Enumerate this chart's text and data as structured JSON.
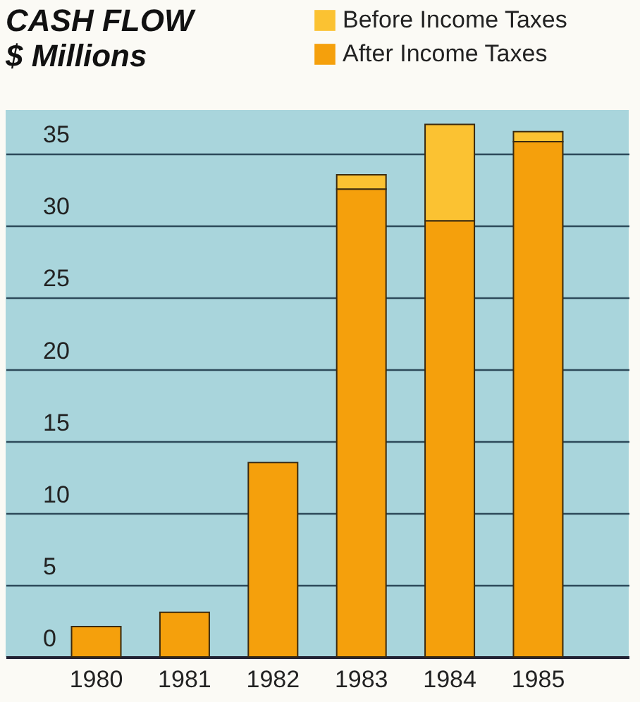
{
  "chart_data": {
    "type": "bar",
    "title": "CASH FLOW",
    "subtitle": "$ Millions",
    "categories": [
      "1980",
      "1981",
      "1982",
      "1983",
      "1984",
      "1985"
    ],
    "series": [
      {
        "name": "After Income Taxes",
        "color": "#f5a00c",
        "values": [
          2.1,
          3.1,
          13.5,
          32.5,
          30.3,
          35.8
        ]
      },
      {
        "name": "Before Income Taxes",
        "color": "#fbc232",
        "values": [
          null,
          null,
          null,
          1.0,
          6.7,
          0.7
        ]
      }
    ],
    "stacked": true,
    "ylim": [
      0,
      38
    ],
    "yticks": [
      0,
      5,
      10,
      15,
      20,
      25,
      30,
      35
    ],
    "grid": "y",
    "legend": "top right"
  }
}
